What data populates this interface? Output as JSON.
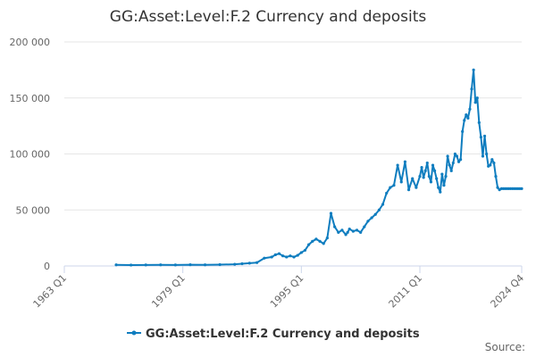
{
  "chart_data": {
    "type": "line",
    "title": "GG:Asset:Level:F.2 Currency and deposits",
    "xlabel": "",
    "ylabel": "",
    "x_ticks": [
      "1963 Q1",
      "1979 Q1",
      "1995 Q1",
      "2011 Q1",
      "2024 Q4"
    ],
    "y_ticks": [
      "0",
      "50 000",
      "100 000",
      "150 000",
      "200 000"
    ],
    "ylim": [
      0,
      200000
    ],
    "xlim": [
      "1963 Q1",
      "2024 Q4"
    ],
    "grid": true,
    "legend_position": "bottom-center",
    "credit": "Source:",
    "series": [
      {
        "name": "GG:Asset:Level:F.2 Currency and deposits",
        "color": "#0f7dbf",
        "x": [
          "1970 Q1",
          "1972 Q1",
          "1974 Q1",
          "1976 Q1",
          "1978 Q1",
          "1980 Q1",
          "1982 Q1",
          "1984 Q1",
          "1986 Q1",
          "1987 Q1",
          "1988 Q1",
          "1989 Q1",
          "1990 Q1",
          "1991 Q1",
          "1991 Q3",
          "1992 Q1",
          "1992 Q3",
          "1993 Q1",
          "1993 Q3",
          "1994 Q1",
          "1994 Q3",
          "1995 Q1",
          "1995 Q3",
          "1996 Q1",
          "1996 Q3",
          "1997 Q1",
          "1997 Q3",
          "1998 Q1",
          "1998 Q3",
          "1999 Q1",
          "1999 Q3",
          "2000 Q1",
          "2000 Q3",
          "2001 Q1",
          "2001 Q2",
          "2001 Q3",
          "2002 Q1",
          "2002 Q3",
          "2003 Q1",
          "2003 Q3",
          "2004 Q1",
          "2004 Q3",
          "2005 Q1",
          "2005 Q3",
          "2006 Q1",
          "2006 Q3",
          "2007 Q1",
          "2007 Q3",
          "2008 Q1",
          "2008 Q3",
          "2009 Q1",
          "2009 Q3",
          "2010 Q1",
          "2010 Q3",
          "2011 Q1",
          "2011 Q2",
          "2011 Q3",
          "2011 Q4",
          "2012 Q1",
          "2012 Q2",
          "2012 Q3",
          "2012 Q4",
          "2013 Q1",
          "2013 Q2",
          "2013 Q3",
          "2013 Q4",
          "2014 Q1",
          "2014 Q2",
          "2014 Q3",
          "2014 Q4",
          "2015 Q1",
          "2015 Q2",
          "2015 Q3",
          "2015 Q4",
          "2016 Q1",
          "2016 Q2",
          "2016 Q3",
          "2016 Q4",
          "2017 Q1",
          "2017 Q2",
          "2017 Q3",
          "2017 Q4",
          "2018 Q1",
          "2018 Q2",
          "2018 Q3",
          "2018 Q4",
          "2019 Q1",
          "2019 Q2",
          "2019 Q3",
          "2019 Q4",
          "2020 Q1",
          "2020 Q2",
          "2020 Q3",
          "2020 Q4",
          "2021 Q1",
          "2021 Q2",
          "2021 Q3",
          "2021 Q4",
          "2022 Q1",
          "2022 Q2",
          "2022 Q3",
          "2022 Q4",
          "2023 Q1",
          "2023 Q2",
          "2023 Q3",
          "2023 Q4",
          "2024 Q1",
          "2024 Q2",
          "2024 Q3",
          "2024 Q4"
        ],
        "values": [
          1000,
          800,
          900,
          1000,
          900,
          1100,
          1000,
          1200,
          1500,
          2000,
          2500,
          3000,
          7000,
          8000,
          10000,
          11000,
          9000,
          8000,
          9000,
          8000,
          9500,
          12000,
          14000,
          19000,
          22000,
          24000,
          22000,
          20000,
          25000,
          47000,
          35000,
          30000,
          32000,
          28000,
          30000,
          33000,
          31000,
          32000,
          30000,
          35000,
          40000,
          43000,
          46000,
          50000,
          55000,
          65000,
          70000,
          72000,
          90000,
          75000,
          93000,
          68000,
          78000,
          70000,
          80000,
          88000,
          79000,
          85000,
          92000,
          80000,
          75000,
          90000,
          85000,
          78000,
          70000,
          66000,
          82000,
          72000,
          80000,
          98000,
          90000,
          85000,
          92000,
          100000,
          98000,
          93000,
          95000,
          120000,
          130000,
          135000,
          132000,
          140000,
          158000,
          175000,
          146000,
          150000,
          128000,
          115000,
          98000,
          116000,
          100000,
          89000,
          90000,
          95000,
          92000,
          80000,
          70000,
          68000,
          69000,
          69000,
          69000,
          69000,
          69000,
          69000,
          69000,
          69000,
          69000,
          69000,
          69000,
          69000
        ]
      }
    ]
  }
}
